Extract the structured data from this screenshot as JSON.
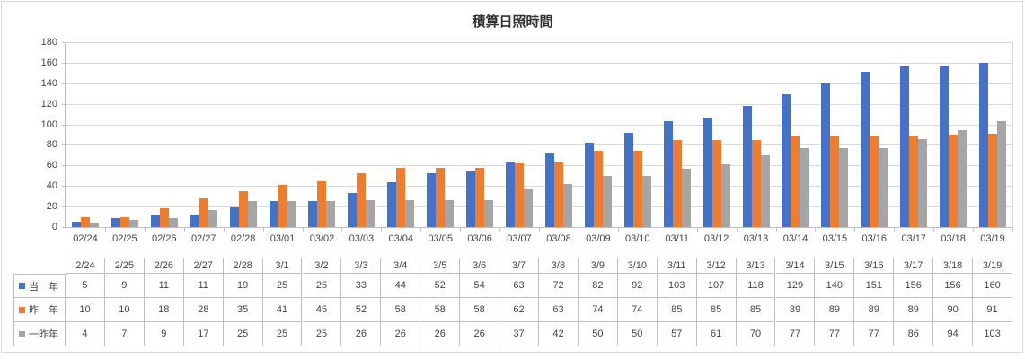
{
  "title": "積算日照時間",
  "chart_data": {
    "type": "bar",
    "title": "積算日照時間",
    "axis_categories": [
      "02/24",
      "02/25",
      "02/26",
      "02/27",
      "02/28",
      "03/01",
      "03/02",
      "03/03",
      "03/04",
      "03/05",
      "03/06",
      "03/07",
      "03/08",
      "03/09",
      "03/10",
      "03/11",
      "03/12",
      "03/13",
      "03/14",
      "03/15",
      "03/16",
      "03/17",
      "03/18",
      "03/19"
    ],
    "categories": [
      "2/24",
      "2/25",
      "2/26",
      "2/27",
      "2/28",
      "3/1",
      "3/2",
      "3/3",
      "3/4",
      "3/5",
      "3/6",
      "3/7",
      "3/8",
      "3/9",
      "3/10",
      "3/11",
      "3/12",
      "3/13",
      "3/14",
      "3/15",
      "3/16",
      "3/17",
      "3/18",
      "3/19"
    ],
    "series": [
      {
        "name": "当　年",
        "color": "#4472C4",
        "values": [
          5,
          9,
          11,
          11,
          19,
          25,
          25,
          33,
          44,
          52,
          54,
          63,
          72,
          82,
          92,
          103,
          107,
          118,
          129,
          140,
          151,
          156,
          156,
          160
        ]
      },
      {
        "name": "昨　年",
        "color": "#ED7D31",
        "values": [
          10,
          10,
          18,
          28,
          35,
          41,
          45,
          52,
          58,
          58,
          58,
          62,
          63,
          74,
          74,
          85,
          85,
          85,
          89,
          89,
          89,
          89,
          90,
          91
        ]
      },
      {
        "name": "一昨年",
        "color": "#A5A5A5",
        "values": [
          4,
          7,
          9,
          17,
          25,
          25,
          25,
          26,
          26,
          26,
          26,
          37,
          42,
          50,
          50,
          57,
          61,
          70,
          77,
          77,
          77,
          86,
          94,
          103
        ]
      }
    ],
    "ylim": [
      0,
      180
    ],
    "ytick_step": 20,
    "yticks": [
      0,
      20,
      40,
      60,
      80,
      100,
      120,
      140,
      160,
      180
    ],
    "grid": true,
    "legend_position": "data-table-left"
  },
  "colors": {
    "grid": "#D9D9D9",
    "axis": "#BFBFBF",
    "table_border": "#BFBFBF",
    "text": "#444444",
    "title_text": "#333333",
    "background": "#FFFFFF"
  }
}
